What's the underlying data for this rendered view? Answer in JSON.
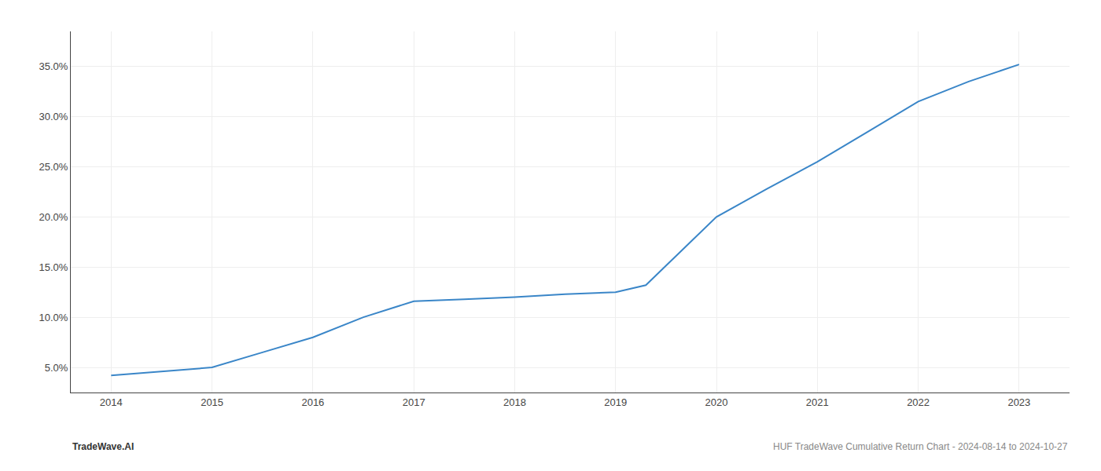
{
  "chart_data": {
    "type": "line",
    "x": [
      2014.0,
      2014.5,
      2015.0,
      2015.5,
      2016.0,
      2016.5,
      2017.0,
      2017.5,
      2018.0,
      2018.5,
      2019.0,
      2019.3,
      2020.0,
      2020.5,
      2021.0,
      2021.5,
      2022.0,
      2022.5,
      2023.0
    ],
    "values": [
      0.042,
      0.046,
      0.05,
      0.065,
      0.08,
      0.1,
      0.116,
      0.118,
      0.12,
      0.123,
      0.125,
      0.132,
      0.2,
      0.228,
      0.255,
      0.285,
      0.315,
      0.335,
      0.352
    ],
    "color": "#3a86c8",
    "xlim": [
      2013.6,
      2023.5
    ],
    "xticks": [
      2014,
      2015,
      2016,
      2017,
      2018,
      2019,
      2020,
      2021,
      2022,
      2023
    ],
    "ylim": [
      0.025,
      0.385
    ],
    "yticks": [
      {
        "value": 0.05,
        "label": "5.0%"
      },
      {
        "value": 0.1,
        "label": "10.0%"
      },
      {
        "value": 0.15,
        "label": "15.0%"
      },
      {
        "value": 0.2,
        "label": "20.0%"
      },
      {
        "value": 0.25,
        "label": "25.0%"
      },
      {
        "value": 0.3,
        "label": "30.0%"
      },
      {
        "value": 0.35,
        "label": "35.0%"
      }
    ],
    "grid": true,
    "annotations": [
      "TradeWave.AI",
      "HUF TradeWave Cumulative Return Chart - 2024-08-14 to 2024-10-27"
    ]
  }
}
